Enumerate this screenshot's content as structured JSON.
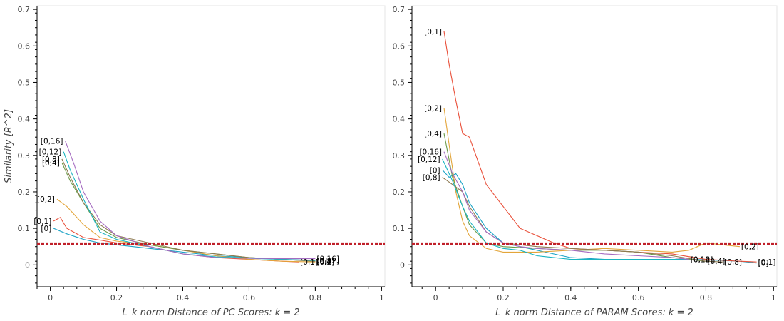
{
  "chart_data": [
    {
      "type": "line",
      "title": "",
      "xlabel": "L_k norm Distance of PC Scores: k = 2",
      "ylabel": "Similarity [R^2]",
      "xlim": [
        -0.04,
        1.01
      ],
      "ylim": [
        -0.06,
        0.71
      ],
      "xticks": [
        0,
        0.2,
        0.4,
        0.6,
        0.8,
        1
      ],
      "xtick_labels": [
        "0",
        "0.2",
        "0.4",
        "0.6",
        "0.8",
        "1"
      ],
      "yticks": [
        0,
        0.1,
        0.2,
        0.3,
        0.4,
        0.5,
        0.6,
        0.7
      ],
      "ytick_labels": [
        "0",
        "0.1",
        "0.2",
        "0.3",
        "0.4",
        "0.5",
        "0.6",
        "0.7"
      ],
      "grid": false,
      "threshold": {
        "y": 0.058,
        "color": "#c0202a",
        "style": "dotted"
      },
      "series": [
        {
          "color": "#1ba3c6",
          "x": [
            0.01,
            0.05,
            0.1,
            0.15,
            0.2,
            0.25,
            0.3,
            0.4,
            0.5,
            0.6,
            0.7,
            0.8
          ],
          "y": [
            0.1,
            0.085,
            0.07,
            0.06,
            0.055,
            0.05,
            0.045,
            0.035,
            0.025,
            0.02,
            0.015,
            0.012
          ],
          "start_label": "[0]",
          "end_label": "[0]"
        },
        {
          "color": "#e9503a",
          "x": [
            0.01,
            0.03,
            0.05,
            0.1,
            0.15,
            0.2,
            0.25,
            0.3,
            0.4,
            0.5,
            0.6,
            0.7,
            0.75
          ],
          "y": [
            0.12,
            0.13,
            0.1,
            0.075,
            0.068,
            0.06,
            0.055,
            0.05,
            0.03,
            0.02,
            0.015,
            0.01,
            0.008
          ],
          "start_label": "[0,1]",
          "end_label": "[0,1]"
        },
        {
          "color": "#e3a53a",
          "x": [
            0.02,
            0.05,
            0.08,
            0.1,
            0.15,
            0.2,
            0.3,
            0.4,
            0.5,
            0.6,
            0.7,
            0.8
          ],
          "y": [
            0.18,
            0.16,
            0.13,
            0.11,
            0.075,
            0.065,
            0.055,
            0.04,
            0.025,
            0.015,
            0.01,
            0.008
          ],
          "start_label": "[0,2]",
          "end_label": "[0,2]"
        },
        {
          "color": "#6b9a48",
          "x": [
            0.035,
            0.06,
            0.1,
            0.15,
            0.2,
            0.3,
            0.4,
            0.5,
            0.6,
            0.7,
            0.8
          ],
          "y": [
            0.28,
            0.23,
            0.17,
            0.1,
            0.075,
            0.055,
            0.04,
            0.03,
            0.02,
            0.015,
            0.01
          ],
          "start_label": "[0,4]",
          "end_label": "[0,4]"
        },
        {
          "color": "#8e7a52",
          "x": [
            0.035,
            0.06,
            0.1,
            0.15,
            0.2,
            0.3,
            0.4,
            0.5,
            0.6,
            0.7,
            0.8
          ],
          "y": [
            0.29,
            0.24,
            0.17,
            0.11,
            0.08,
            0.06,
            0.04,
            0.03,
            0.02,
            0.015,
            0.01
          ],
          "start_label": "[0,8]",
          "end_label": "[0,8]"
        },
        {
          "color": "#18b4c0",
          "x": [
            0.04,
            0.06,
            0.1,
            0.15,
            0.2,
            0.3,
            0.4,
            0.5,
            0.6,
            0.7,
            0.8
          ],
          "y": [
            0.31,
            0.26,
            0.18,
            0.09,
            0.07,
            0.05,
            0.03,
            0.022,
            0.018,
            0.015,
            0.012
          ],
          "start_label": "[0,12]",
          "end_label": "[0,12]"
        },
        {
          "color": "#a56cc1",
          "x": [
            0.045,
            0.07,
            0.1,
            0.15,
            0.2,
            0.3,
            0.4,
            0.5,
            0.6,
            0.7,
            0.8
          ],
          "y": [
            0.34,
            0.28,
            0.2,
            0.12,
            0.08,
            0.05,
            0.03,
            0.02,
            0.018,
            0.017,
            0.017
          ],
          "start_label": "[0,16]",
          "end_label": "[0,16]"
        }
      ]
    },
    {
      "type": "line",
      "title": "",
      "xlabel": "L_k norm Distance of PARAM Scores: k = 2",
      "ylabel": "",
      "xlim": [
        -0.07,
        1.01
      ],
      "ylim": [
        -0.06,
        0.71
      ],
      "xticks": [
        0,
        0.2,
        0.4,
        0.6,
        0.8,
        1
      ],
      "xtick_labels": [
        "0",
        "0.2",
        "0.4",
        "0.6",
        "0.8",
        "1"
      ],
      "yticks": [
        0,
        0.1,
        0.2,
        0.3,
        0.4,
        0.5,
        0.6,
        0.7
      ],
      "ytick_labels": [
        "0",
        "0.1",
        "0.2",
        "0.3",
        "0.4",
        "0.5",
        "0.6",
        "0.7"
      ],
      "grid": false,
      "threshold": {
        "y": 0.058,
        "color": "#c0202a",
        "style": "dotted"
      },
      "series": [
        {
          "color": "#1ba3c6",
          "x": [
            0.02,
            0.04,
            0.06,
            0.08,
            0.1,
            0.15,
            0.2,
            0.3,
            0.4,
            0.5,
            0.6,
            0.7,
            0.8,
            0.9,
            0.95
          ],
          "y": [
            0.26,
            0.24,
            0.25,
            0.22,
            0.17,
            0.1,
            0.06,
            0.04,
            0.02,
            0.015,
            0.015,
            0.015,
            0.014,
            0.01,
            0.005
          ],
          "start_label": "[0]",
          "end_label": "[0]"
        },
        {
          "color": "#e9503a",
          "x": [
            0.025,
            0.04,
            0.06,
            0.08,
            0.1,
            0.15,
            0.2,
            0.25,
            0.3,
            0.35,
            0.4,
            0.5,
            0.6,
            0.7,
            0.8,
            0.9,
            0.95
          ],
          "y": [
            0.64,
            0.55,
            0.45,
            0.36,
            0.35,
            0.22,
            0.16,
            0.1,
            0.08,
            0.06,
            0.045,
            0.04,
            0.035,
            0.03,
            0.015,
            0.01,
            0.008
          ],
          "start_label": "[0,1]",
          "end_label": "[0,1]"
        },
        {
          "color": "#e3a53a",
          "x": [
            0.025,
            0.04,
            0.06,
            0.08,
            0.1,
            0.15,
            0.2,
            0.3,
            0.4,
            0.5,
            0.6,
            0.7,
            0.75,
            0.8,
            0.85,
            0.9
          ],
          "y": [
            0.43,
            0.33,
            0.2,
            0.12,
            0.08,
            0.045,
            0.035,
            0.035,
            0.04,
            0.045,
            0.04,
            0.035,
            0.04,
            0.06,
            0.055,
            0.05
          ],
          "start_label": "[0,2]",
          "end_label": "[0,2]"
        },
        {
          "color": "#6b9a48",
          "x": [
            0.025,
            0.05,
            0.08,
            0.1,
            0.15,
            0.2,
            0.3,
            0.4,
            0.5,
            0.6,
            0.7,
            0.8
          ],
          "y": [
            0.36,
            0.24,
            0.16,
            0.11,
            0.06,
            0.05,
            0.045,
            0.04,
            0.04,
            0.035,
            0.02,
            0.01
          ],
          "start_label": "[0,4]",
          "end_label": "[0,4]"
        },
        {
          "color": "#8e7a52",
          "x": [
            0.02,
            0.05,
            0.08,
            0.1,
            0.15,
            0.2,
            0.3,
            0.4,
            0.5,
            0.6,
            0.7,
            0.8,
            0.85
          ],
          "y": [
            0.24,
            0.22,
            0.2,
            0.16,
            0.09,
            0.06,
            0.05,
            0.045,
            0.04,
            0.035,
            0.025,
            0.01,
            0.008
          ],
          "start_label": "[0,8]",
          "end_label": "[0,8]"
        },
        {
          "color": "#18b4c0",
          "x": [
            0.02,
            0.05,
            0.08,
            0.1,
            0.15,
            0.2,
            0.25,
            0.3,
            0.4,
            0.5,
            0.6,
            0.7,
            0.75
          ],
          "y": [
            0.29,
            0.23,
            0.16,
            0.12,
            0.06,
            0.045,
            0.04,
            0.025,
            0.015,
            0.015,
            0.015,
            0.015,
            0.015
          ],
          "start_label": "[0,12]",
          "end_label": "[0,12]"
        },
        {
          "color": "#a56cc1",
          "x": [
            0.025,
            0.05,
            0.08,
            0.1,
            0.15,
            0.2,
            0.25,
            0.3,
            0.4,
            0.5,
            0.6,
            0.7,
            0.75
          ],
          "y": [
            0.31,
            0.25,
            0.2,
            0.15,
            0.09,
            0.06,
            0.05,
            0.045,
            0.04,
            0.03,
            0.025,
            0.02,
            0.015
          ],
          "start_label": "[0,16]",
          "end_label": "[0,16]"
        }
      ]
    }
  ]
}
